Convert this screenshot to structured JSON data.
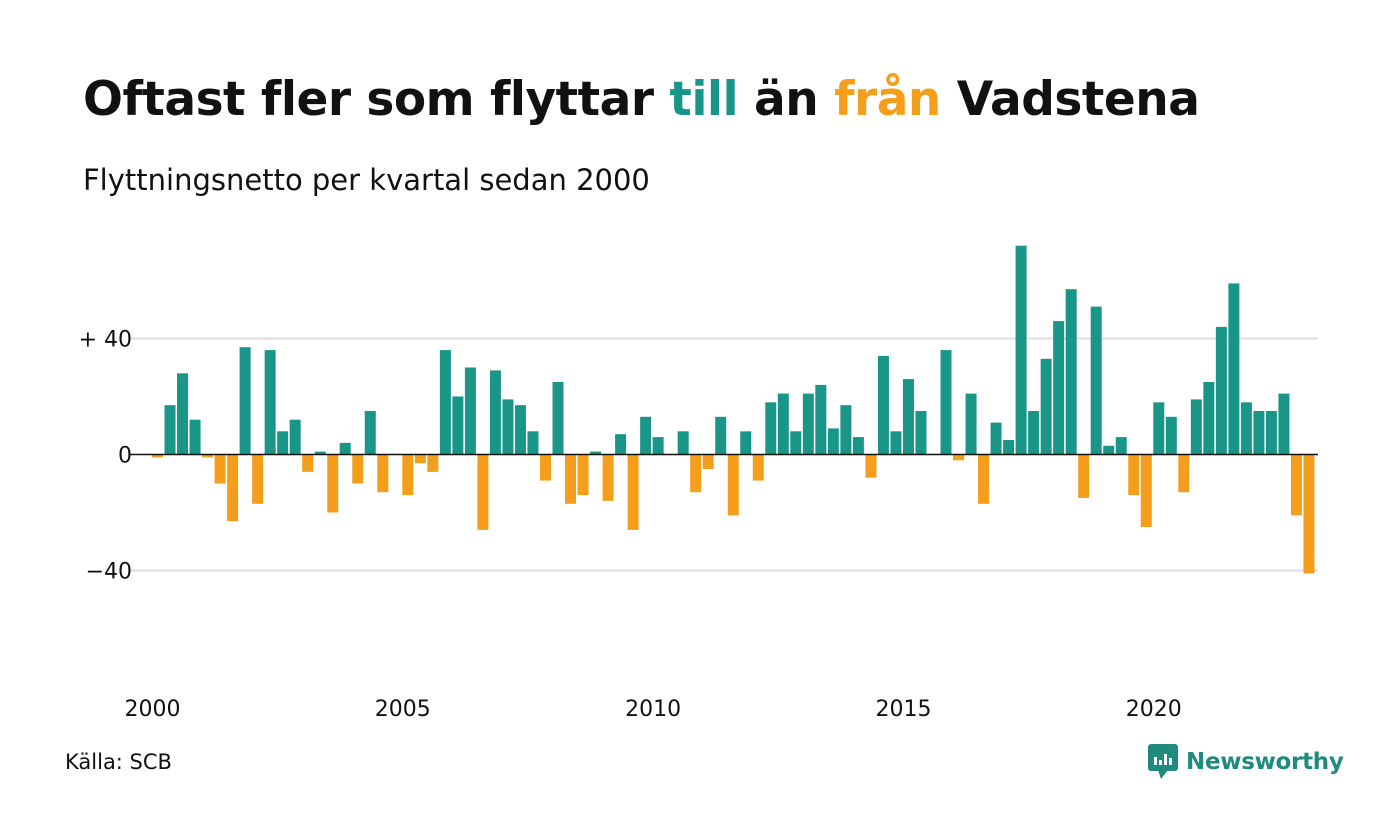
{
  "title": {
    "part1": "Oftast fler som flyttar ",
    "part2": "till",
    "part3": " än ",
    "part4": "från",
    "part5": " Vadstena"
  },
  "subtitle": "Flyttningsnetto per kvartal sedan 2000",
  "source": "Källa: SCB",
  "logo": {
    "text": "Newsworthy",
    "icon": "newsworthy-chart-bubble-icon"
  },
  "colors": {
    "positive": "#1a9688",
    "negative": "#f59e1c",
    "grid": "#dddddd",
    "text": "#111111"
  },
  "chart_data": {
    "type": "bar",
    "title": "Oftast fler som flyttar till än från Vadstena",
    "subtitle": "Flyttningsnetto per kvartal sedan 2000",
    "xlabel": "",
    "ylabel": "",
    "ylim": [
      -80,
      80
    ],
    "yticks": [
      {
        "value": 40,
        "label": "+ 40"
      },
      {
        "value": 0,
        "label": "0"
      },
      {
        "value": -40,
        "label": "−40"
      }
    ],
    "xticks": [
      "2000",
      "2005",
      "2010",
      "2015",
      "2020"
    ],
    "grid": true,
    "start": "2000-Q1",
    "values": [
      -1,
      17,
      28,
      12,
      -1,
      -10,
      -23,
      37,
      -17,
      36,
      8,
      12,
      -6,
      1,
      -20,
      4,
      -10,
      15,
      -13,
      0,
      -14,
      -3,
      -6,
      36,
      20,
      30,
      -26,
      29,
      19,
      17,
      8,
      -9,
      25,
      -17,
      -14,
      1,
      -16,
      7,
      -26,
      13,
      6,
      0,
      8,
      -13,
      -5,
      13,
      -21,
      8,
      -9,
      18,
      21,
      8,
      21,
      24,
      9,
      17,
      6,
      -8,
      34,
      8,
      26,
      15,
      0,
      36,
      -2,
      21,
      -17,
      11,
      5,
      72,
      15,
      33,
      46,
      57,
      -15,
      51,
      3,
      6,
      -14,
      -25,
      18,
      13,
      -13,
      19,
      25,
      44,
      59,
      18,
      15,
      15,
      21,
      -21,
      -41
    ]
  }
}
